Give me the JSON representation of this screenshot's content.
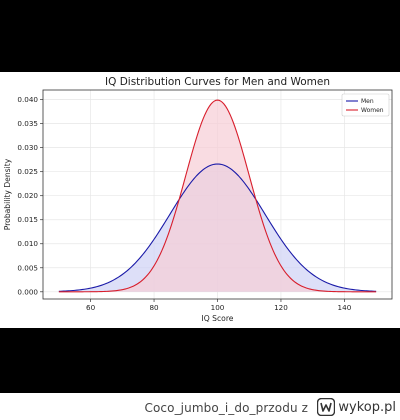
{
  "chart_data": {
    "type": "line",
    "title": "IQ Distribution Curves for Men and Women",
    "xlabel": "IQ Score",
    "ylabel": "Probability Density",
    "xlim": [
      45,
      155
    ],
    "ylim": [
      -0.0015,
      0.042
    ],
    "x_ticks": [
      60,
      80,
      100,
      120,
      140
    ],
    "y_ticks": [
      0.0,
      0.005,
      0.01,
      0.015,
      0.02,
      0.025,
      0.03,
      0.035,
      0.04
    ],
    "x_tick_labels": [
      "60",
      "80",
      "100",
      "120",
      "140"
    ],
    "y_tick_labels": [
      "0.000",
      "0.005",
      "0.010",
      "0.015",
      "0.020",
      "0.025",
      "0.030",
      "0.035",
      "0.040"
    ],
    "x_range": [
      50,
      150
    ],
    "grid": true,
    "legend_position": "top-right",
    "series": [
      {
        "name": "Men",
        "mean": 100,
        "sd": 15,
        "peak": 0.0266,
        "color": "#1a1aa8",
        "fill": "#cfd2f5"
      },
      {
        "name": "Women",
        "mean": 100,
        "sd": 10,
        "peak": 0.0399,
        "color": "#d81e2c",
        "fill": "#f6cdd6"
      }
    ]
  },
  "footer": {
    "caption": "Coco_jumbo_i_do_przodu",
    "caption_suffix": "z",
    "brand": "wykop.pl"
  }
}
